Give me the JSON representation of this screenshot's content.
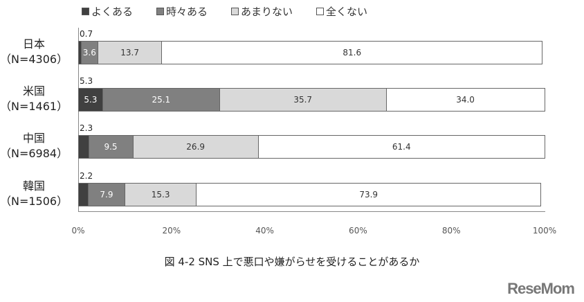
{
  "legend": [
    {
      "label": "よくある",
      "color": "#404040"
    },
    {
      "label": "時々ある",
      "color": "#808080"
    },
    {
      "label": "あまりない",
      "color": "#d9d9d9"
    },
    {
      "label": "全くない",
      "color": "#ffffff"
    }
  ],
  "rows": [
    {
      "country": "日本",
      "n": "（N=4306）",
      "values": [
        0.7,
        3.6,
        13.7,
        81.6
      ],
      "labels": [
        "0.7",
        "3.6",
        "13.7",
        "81.6"
      ]
    },
    {
      "country": "米国",
      "n": "（N=1461）",
      "values": [
        5.3,
        25.1,
        35.7,
        34.0
      ],
      "labels": [
        "5.3",
        "25.1",
        "35.7",
        "34.0"
      ]
    },
    {
      "country": "中国",
      "n": "（N=6984）",
      "values": [
        2.3,
        9.5,
        26.9,
        61.4
      ],
      "labels": [
        "2.3",
        "9.5",
        "26.9",
        "61.4"
      ]
    },
    {
      "country": "韓国",
      "n": "（N=1506）",
      "values": [
        2.2,
        7.9,
        15.3,
        73.9
      ],
      "labels": [
        "2.2",
        "7.9",
        "15.3",
        "73.9"
      ]
    }
  ],
  "x_ticks": [
    "0%",
    "20%",
    "40%",
    "60%",
    "80%",
    "100%"
  ],
  "caption": "図 4-2  SNS 上で悪口や嫌がらせを受けることがあるか",
  "logo": "ReseMom",
  "chart_data": {
    "type": "bar",
    "orientation": "horizontal",
    "stacked": true,
    "title": "図 4-2 SNS 上で悪口や嫌がらせを受けることがあるか",
    "categories": [
      "日本（N=4306）",
      "米国（N=1461）",
      "中国（N=6984）",
      "韓国（N=1506）"
    ],
    "series": [
      {
        "name": "よくある",
        "values": [
          0.7,
          5.3,
          2.3,
          2.2
        ]
      },
      {
        "name": "時々ある",
        "values": [
          3.6,
          25.1,
          9.5,
          7.9
        ]
      },
      {
        "name": "あまりない",
        "values": [
          13.7,
          35.7,
          26.9,
          15.3
        ]
      },
      {
        "name": "全くない",
        "values": [
          81.6,
          34.0,
          61.4,
          73.9
        ]
      }
    ],
    "xlabel": "",
    "ylabel": "",
    "xlim": [
      0,
      100
    ],
    "x_tick_labels": [
      "0%",
      "20%",
      "40%",
      "60%",
      "80%",
      "100%"
    ],
    "legend_position": "top",
    "grid": false
  }
}
